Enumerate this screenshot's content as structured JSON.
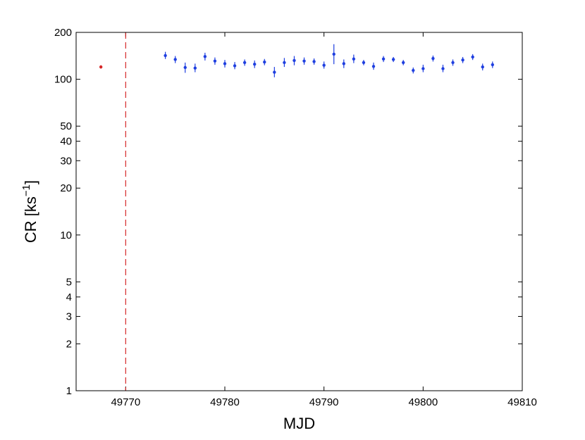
{
  "chart_data": {
    "type": "scatter",
    "xlabel": "MJD",
    "ylabel_text": "CR [ks",
    "ylabel_superscript": "−1",
    "ylabel_close": "]",
    "xlim": [
      49765,
      49810
    ],
    "ylim": [
      1,
      200
    ],
    "yscale": "log",
    "grid": false,
    "xticks": [
      49770,
      49780,
      49790,
      49800,
      49810
    ],
    "yticks": [
      1,
      2,
      3,
      4,
      5,
      10,
      20,
      30,
      40,
      50,
      100,
      200
    ],
    "vline": {
      "x": 49770,
      "color": "#d62728",
      "style": "dashed"
    },
    "series": [
      {
        "color": "#d62728",
        "points": [
          {
            "x": 49767.5,
            "y": 120,
            "yerr": [
              117,
              123
            ]
          }
        ]
      },
      {
        "color": "#1f3fe0",
        "points": [
          {
            "x": 49774,
            "y": 142,
            "yerr": [
              135,
              150
            ]
          },
          {
            "x": 49775,
            "y": 134,
            "yerr": [
              127,
              141
            ]
          },
          {
            "x": 49776,
            "y": 119,
            "yerr": [
              110,
              128
            ]
          },
          {
            "x": 49777,
            "y": 118,
            "yerr": [
              111,
              126
            ]
          },
          {
            "x": 49778,
            "y": 140,
            "yerr": [
              132,
              148
            ]
          },
          {
            "x": 49779,
            "y": 131,
            "yerr": [
              124,
              138
            ]
          },
          {
            "x": 49780,
            "y": 126,
            "yerr": [
              119,
              133
            ]
          },
          {
            "x": 49781,
            "y": 122,
            "yerr": [
              116,
              129
            ]
          },
          {
            "x": 49782,
            "y": 128,
            "yerr": [
              122,
              134
            ]
          },
          {
            "x": 49783,
            "y": 125,
            "yerr": [
              118,
              132
            ]
          },
          {
            "x": 49784,
            "y": 129,
            "yerr": [
              123,
              135
            ]
          },
          {
            "x": 49785,
            "y": 111,
            "yerr": [
              103,
              120
            ]
          },
          {
            "x": 49786,
            "y": 128,
            "yerr": [
              120,
              137
            ]
          },
          {
            "x": 49787,
            "y": 132,
            "yerr": [
              123,
              141
            ]
          },
          {
            "x": 49788,
            "y": 131,
            "yerr": [
              124,
              138
            ]
          },
          {
            "x": 49789,
            "y": 130,
            "yerr": [
              124,
              136
            ]
          },
          {
            "x": 49790,
            "y": 123,
            "yerr": [
              117,
              130
            ]
          },
          {
            "x": 49791,
            "y": 145,
            "yerr": [
              125,
              168
            ]
          },
          {
            "x": 49792,
            "y": 126,
            "yerr": [
              118,
              134
            ]
          },
          {
            "x": 49793,
            "y": 135,
            "yerr": [
              127,
              144
            ]
          },
          {
            "x": 49794,
            "y": 128,
            "yerr": [
              123,
              133
            ]
          },
          {
            "x": 49795,
            "y": 121,
            "yerr": [
              115,
              128
            ]
          },
          {
            "x": 49796,
            "y": 135,
            "yerr": [
              129,
              141
            ]
          },
          {
            "x": 49797,
            "y": 134,
            "yerr": [
              129,
              139
            ]
          },
          {
            "x": 49798,
            "y": 128,
            "yerr": [
              123,
              133
            ]
          },
          {
            "x": 49799,
            "y": 114,
            "yerr": [
              109,
              119
            ]
          },
          {
            "x": 49800,
            "y": 117,
            "yerr": [
              111,
              124
            ]
          },
          {
            "x": 49801,
            "y": 136,
            "yerr": [
              130,
              142
            ]
          },
          {
            "x": 49802,
            "y": 117,
            "yerr": [
              111,
              124
            ]
          },
          {
            "x": 49803,
            "y": 128,
            "yerr": [
              122,
              134
            ]
          },
          {
            "x": 49804,
            "y": 133,
            "yerr": [
              127,
              139
            ]
          },
          {
            "x": 49805,
            "y": 139,
            "yerr": [
              133,
              145
            ]
          },
          {
            "x": 49806,
            "y": 120,
            "yerr": [
              114,
              126
            ]
          },
          {
            "x": 49807,
            "y": 124,
            "yerr": [
              118,
              130
            ]
          }
        ]
      }
    ]
  }
}
